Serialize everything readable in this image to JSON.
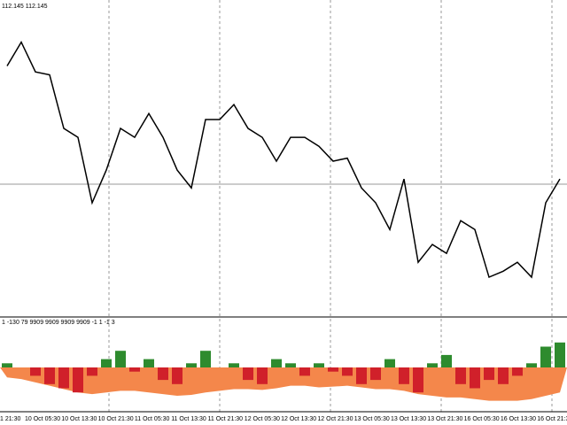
{
  "chart_data": [
    {
      "type": "line",
      "title": "112.145 112.145",
      "color": "#000000",
      "values": [
        82,
        90,
        80,
        79,
        61,
        58,
        36,
        47,
        61,
        58,
        66,
        58,
        47,
        41,
        64,
        64,
        69,
        61,
        58,
        50,
        58,
        58,
        55,
        50,
        51,
        41,
        36,
        27,
        44,
        16,
        22,
        19,
        30,
        27,
        11,
        13,
        16,
        11,
        36,
        44
      ],
      "ylim": [
        0,
        100
      ]
    },
    {
      "type": "bar",
      "title": "1 -130 79 9909 9909 9909 9909 -1 1 -1 3",
      "series": [
        {
          "values": [
            5,
            0,
            -10,
            -20,
            -25,
            -30,
            -10,
            10,
            20,
            -5,
            10,
            -15,
            -20,
            5,
            20,
            0,
            5,
            -15,
            -20,
            10,
            5,
            -10,
            5,
            -5,
            -10,
            -20,
            -15,
            10,
            -20,
            -30,
            5,
            15,
            -20,
            -25,
            -15,
            -20,
            -10,
            5,
            25,
            30
          ],
          "color": "#2e8b2e"
        },
        {
          "values": [
            -12,
            -14,
            -18,
            -22,
            -26,
            -30,
            -32,
            -30,
            -28,
            -28,
            -30,
            -32,
            -34,
            -33,
            -30,
            -28,
            -26,
            -26,
            -27,
            -25,
            -22,
            -22,
            -24,
            -23,
            -22,
            -24,
            -26,
            -26,
            -28,
            -32,
            -34,
            -36,
            -36,
            -38,
            -40,
            -40,
            -40,
            -38,
            -34,
            -30
          ],
          "color": "#f4874b"
        }
      ],
      "negative_color": "#d0202a",
      "ylim": [
        -50,
        50
      ]
    }
  ],
  "time_labels": [
    "1 21:30",
    "10 Oct 05:30",
    "10 Oct 13:30",
    "10 Oct 21:30",
    "11 Oct 05:30",
    "11 Oct 13:30",
    "11 Oct 21:30",
    "12 Oct 05:30",
    "12 Oct 13:30",
    "12 Oct 21:30",
    "13 Oct 05:30",
    "13 Oct 13:30",
    "13 Oct 21:30",
    "16 Oct 05:30",
    "16 Oct 13:30",
    "16 Oct 21:3"
  ]
}
